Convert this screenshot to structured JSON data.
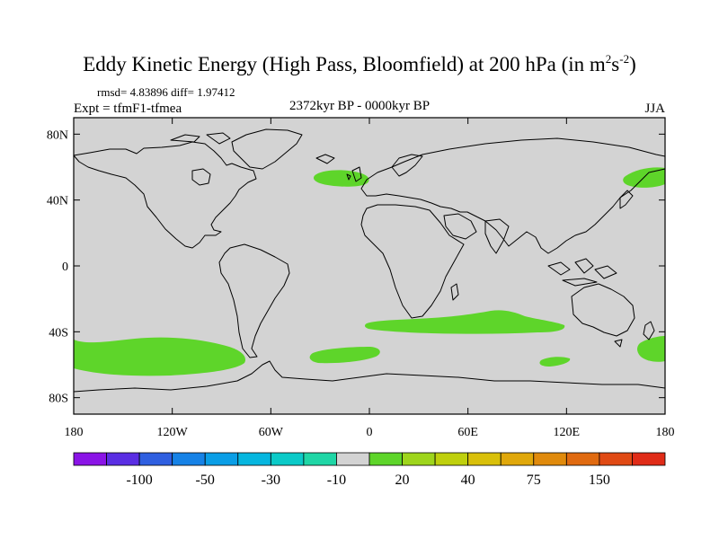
{
  "title": {
    "main": "Eddy Kinetic Energy (High Pass, Bloomfield) at 200 hPa (in m",
    "sup1": "2",
    "mid": "s",
    "sup2": "-2",
    "close": ")"
  },
  "stats": "rmsd= 4.83896 diff= 1.97412",
  "expt": "Expt = tfmF1-tfmea",
  "period": "2372kyr BP - 0000kyr BP",
  "season": "JJA",
  "colors": {
    "land_ocean_fill": "#d3d3d3",
    "anomaly_fill": "#5ed52a",
    "coastline": "#000000"
  },
  "lat_labels": [
    "80N",
    "40N",
    "0",
    "40S",
    "80S"
  ],
  "lon_labels": [
    "180",
    "120W",
    "60W",
    "0",
    "60E",
    "120E",
    "180"
  ],
  "colorbar": {
    "colors": [
      "#8a14e6",
      "#5a2ee3",
      "#2f5fe0",
      "#1682e6",
      "#0a9ee6",
      "#06b6df",
      "#0bcac8",
      "#1fd6a6",
      "#d3d3d3",
      "#5ed52a",
      "#9ed51c",
      "#bfd00d",
      "#d9c00a",
      "#e0a80b",
      "#e08a0c",
      "#e06a10",
      "#e04a14",
      "#e02c18"
    ],
    "labels": [
      "-100",
      "-50",
      "-30",
      "-10",
      "20",
      "40",
      "75",
      "150"
    ]
  }
}
